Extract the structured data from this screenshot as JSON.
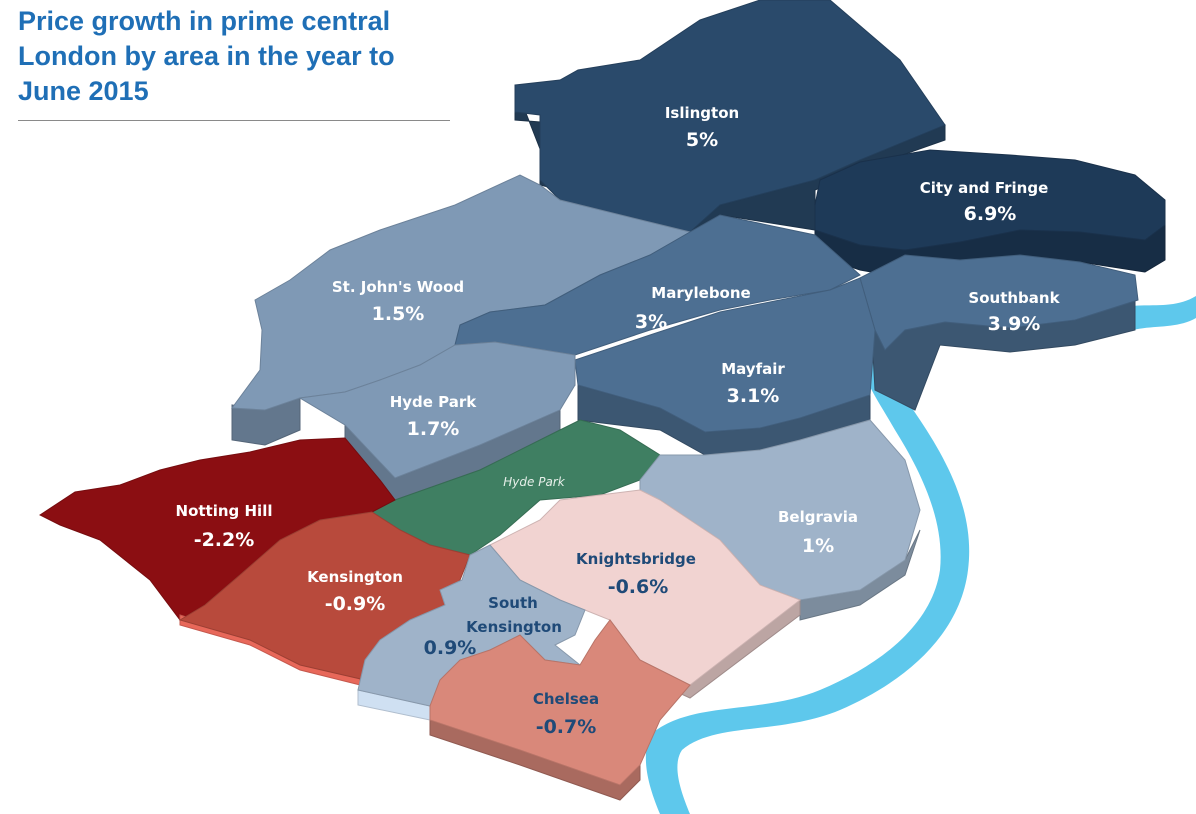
{
  "title": "Price growth in prime central London by area in the year to June 2015",
  "colors": {
    "river": "#5ec8ec",
    "park": "#3f7f62",
    "dark_blue": "#2a4a6b",
    "navy": "#1e3a58",
    "mid_blue": "#4d6f92",
    "light_blue": "#7f99b5",
    "pale_blue": "#9fb3c9",
    "dark_red": "#8b0e12",
    "red": "#b84a3c",
    "salmon": "#d9887a",
    "pink": "#f1d3d1"
  },
  "park_label": "Hyde Park",
  "areas": [
    {
      "name": "Islington",
      "value": "5%"
    },
    {
      "name": "City and Fringe",
      "value": "6.9%"
    },
    {
      "name": "St. John's Wood",
      "value": "1.5%"
    },
    {
      "name": "Marylebone",
      "value": "3%"
    },
    {
      "name": "Southbank",
      "value": "3.9%"
    },
    {
      "name": "Mayfair",
      "value": "3.1%"
    },
    {
      "name": "Hyde Park",
      "value": "1.7%"
    },
    {
      "name": "Notting Hill",
      "value": "-2.2%"
    },
    {
      "name": "Belgravia",
      "value": "1%"
    },
    {
      "name": "Kensington",
      "value": "-0.9%"
    },
    {
      "name": "Knightsbridge",
      "value": "-0.6%"
    },
    {
      "name": "South",
      "name2": "Kensington",
      "value": "0.9%"
    },
    {
      "name": "Chelsea",
      "value": "-0.7%"
    }
  ]
}
